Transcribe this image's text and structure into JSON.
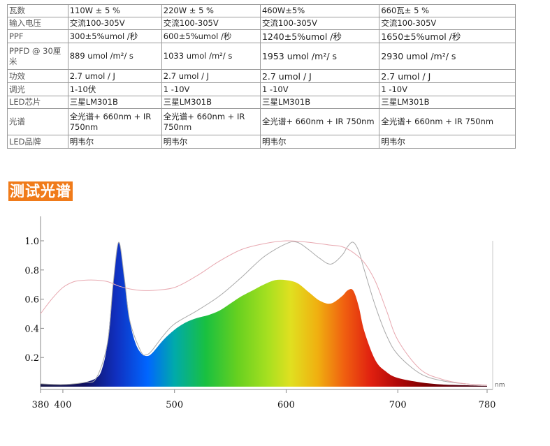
{
  "table": {
    "rows": [
      {
        "label": "瓦数",
        "values": [
          "110W ± 5 %",
          "220W ± 5 %",
          "460W±5%",
          "660瓦± 5 %"
        ]
      },
      {
        "label": "输入电压",
        "values": [
          "交流100-305V",
          "交流100-305V",
          "交流100-305V",
          "交流100-305V"
        ]
      },
      {
        "label": "PPF",
        "values": [
          "300±5%umol /秒",
          "600±5%umol /秒",
          "1240±5%umol /秒",
          "1650±5%umol /秒"
        ]
      },
      {
        "label": "PPFD @ 30厘米",
        "values": [
          "889 umol /m²/ s",
          "1033 umol /m²/ s",
          "1953 umol /m²/ s",
          "2930 umol /m²/ s"
        ]
      },
      {
        "label": "功效",
        "values": [
          "2.7 umol / J",
          "2.7 umol / J",
          "2.7 umol / J",
          "2.7 umol / J"
        ]
      },
      {
        "label": "调光",
        "values": [
          "1-10伏",
          "1 -10V",
          "1 -10V",
          "1 -10V"
        ]
      },
      {
        "label": "LED芯片",
        "values": [
          "三星LM301B",
          "三星LM301B",
          "三星LM301B",
          "三星LM301B"
        ]
      },
      {
        "label": "光谱",
        "values": [
          "全光谱+ 660nm + IR 750nm",
          "全光谱+ 660nm + IR 750nm",
          "全光谱+ 660nm + IR 750nm",
          "全光谱+ 660nm + IR 750nm"
        ]
      },
      {
        "label": "LED品牌",
        "values": [
          "明韦尔",
          "明韦尔",
          "明韦尔",
          "明韦尔"
        ]
      }
    ]
  },
  "section_title": "测试光谱",
  "chart_data": {
    "type": "area",
    "x_unit": "nm",
    "xlim": [
      380,
      780
    ],
    "ylim": [
      0,
      1.0
    ],
    "x_ticks": [
      380,
      400,
      500,
      600,
      700,
      780
    ],
    "y_ticks": [
      0.2,
      0.4,
      0.6,
      0.8,
      1.0
    ],
    "y_tick_labels": [
      "0.2",
      "0.4",
      "0.6",
      "0.8",
      "1.0"
    ],
    "series": [
      {
        "role": "measured-spectrum",
        "style": "filled-rainbow",
        "x": [
          380,
          390,
          400,
          410,
          420,
          430,
          435,
          440,
          445,
          450,
          455,
          460,
          465,
          470,
          475,
          480,
          490,
          500,
          510,
          520,
          530,
          540,
          550,
          560,
          570,
          580,
          590,
          600,
          610,
          620,
          630,
          640,
          650,
          655,
          660,
          665,
          670,
          680,
          690,
          700,
          720,
          740,
          760,
          780
        ],
        "y": [
          0.02,
          0.015,
          0.015,
          0.02,
          0.03,
          0.06,
          0.12,
          0.3,
          0.7,
          0.99,
          0.75,
          0.45,
          0.3,
          0.23,
          0.21,
          0.23,
          0.32,
          0.39,
          0.44,
          0.47,
          0.49,
          0.52,
          0.57,
          0.62,
          0.66,
          0.7,
          0.73,
          0.73,
          0.71,
          0.65,
          0.59,
          0.57,
          0.62,
          0.66,
          0.66,
          0.55,
          0.38,
          0.18,
          0.1,
          0.06,
          0.03,
          0.015,
          0.01,
          0.005
        ]
      },
      {
        "role": "gray-reference",
        "style": "line",
        "color": "#aaaaaa",
        "x": [
          380,
          400,
          420,
          430,
          440,
          445,
          450,
          455,
          460,
          470,
          475,
          480,
          490,
          500,
          520,
          540,
          560,
          580,
          600,
          610,
          620,
          630,
          640,
          650,
          655,
          660,
          665,
          670,
          680,
          690,
          700,
          720,
          740,
          760,
          780
        ],
        "y": [
          0.02,
          0.015,
          0.03,
          0.06,
          0.3,
          0.7,
          0.99,
          0.75,
          0.45,
          0.24,
          0.22,
          0.25,
          0.35,
          0.43,
          0.52,
          0.62,
          0.75,
          0.89,
          0.98,
          0.99,
          0.94,
          0.88,
          0.84,
          0.9,
          0.96,
          0.99,
          0.93,
          0.8,
          0.55,
          0.35,
          0.22,
          0.09,
          0.04,
          0.02,
          0.01
        ]
      },
      {
        "role": "pink-reference",
        "style": "line",
        "color": "#e8a8b0",
        "x": [
          380,
          390,
          400,
          410,
          420,
          430,
          440,
          450,
          460,
          470,
          480,
          500,
          520,
          540,
          560,
          580,
          600,
          620,
          640,
          650,
          660,
          670,
          680,
          690,
          700,
          720,
          740,
          760,
          780
        ],
        "y": [
          0.5,
          0.6,
          0.68,
          0.72,
          0.73,
          0.73,
          0.72,
          0.69,
          0.67,
          0.66,
          0.66,
          0.68,
          0.76,
          0.86,
          0.94,
          0.98,
          1.0,
          0.99,
          0.97,
          0.96,
          0.92,
          0.85,
          0.72,
          0.52,
          0.32,
          0.12,
          0.05,
          0.02,
          0.01
        ]
      }
    ]
  }
}
